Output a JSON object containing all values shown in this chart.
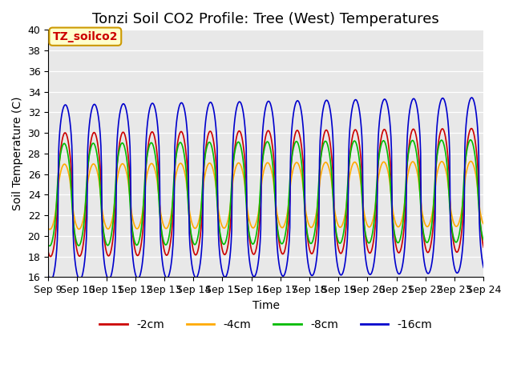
{
  "title": "Tonzi Soil CO2 Profile: Tree (West) Temperatures",
  "xlabel": "Time",
  "ylabel": "Soil Temperature (C)",
  "ylim": [
    16,
    40
  ],
  "x_tick_labels": [
    "Sep 9",
    "Sep 10",
    "Sep 11",
    "Sep 12",
    "Sep 13",
    "Sep 14",
    "Sep 15",
    "Sep 16",
    "Sep 17",
    "Sep 18",
    "Sep 19",
    "Sep 20",
    "Sep 21",
    "Sep 22",
    "Sep 23",
    "Sep 24"
  ],
  "legend_labels": [
    "-2cm",
    "-4cm",
    "-8cm",
    "-16cm"
  ],
  "line_colors": [
    "#cc0000",
    "#ffaa00",
    "#00bb00",
    "#0000cc"
  ],
  "line_width": 1.2,
  "legend_box_color": "#ffffcc",
  "legend_box_edge": "#cc9900",
  "legend_text_color": "#cc0000",
  "annotation_text": "TZ_soilco2",
  "plot_bg_color": "#e8e8e8",
  "title_fontsize": 13,
  "axis_fontsize": 10,
  "tick_fontsize": 9
}
